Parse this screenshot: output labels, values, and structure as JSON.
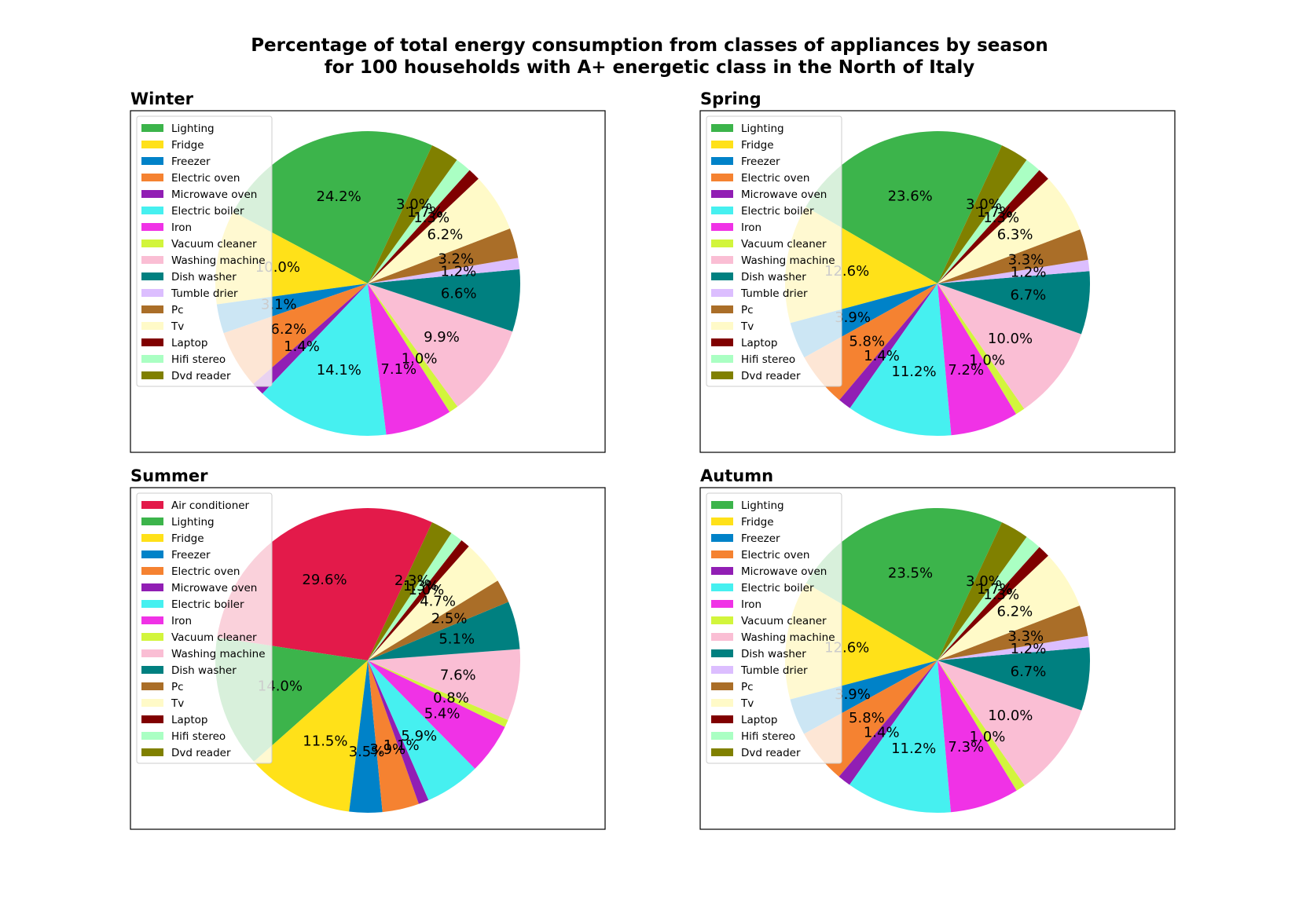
{
  "figure": {
    "title_line1": "Percentage of total energy consumption from classes of appliances by season",
    "title_line2": "for 100 households with A+ energetic class in the North of Italy"
  },
  "colors": {
    "Air conditioner": "#e31a4a",
    "Lighting": "#3cb44b",
    "Fridge": "#ffe119",
    "Freezer": "#0082c8",
    "Electric oven": "#f58231",
    "Microwave oven": "#911eb4",
    "Electric boiler": "#46f0f0",
    "Iron": "#f032e6",
    "Vacuum cleaner": "#d2f53c",
    "Washing machine": "#fabed4",
    "Dish washer": "#008080",
    "Tumble drier": "#dcbeff",
    "Pc": "#aa6e28",
    "Tv": "#fffac8",
    "Laptop": "#800000",
    "Hifi stereo": "#aaffc3",
    "Dvd reader": "#808000"
  },
  "chart_data": [
    {
      "type": "pie",
      "title": "Winter",
      "labels": [
        "Lighting",
        "Fridge",
        "Freezer",
        "Electric oven",
        "Microwave oven",
        "Electric boiler",
        "Iron",
        "Vacuum cleaner",
        "Washing machine",
        "Dish washer",
        "Tumble drier",
        "Pc",
        "Tv",
        "Laptop",
        "Hifi stereo",
        "Dvd reader"
      ],
      "values": [
        24.2,
        10.0,
        3.1,
        6.2,
        1.4,
        14.1,
        7.1,
        1.0,
        9.9,
        6.6,
        1.2,
        3.2,
        6.2,
        1.3,
        1.7,
        3.0
      ],
      "value_labels": [
        "24.2%",
        "10.0%",
        "3.1%",
        "6.2%",
        "1.4%",
        "14.1%",
        "7.1%",
        "1.0%",
        "9.9%",
        "6.6%",
        "1.2%",
        "3.2%",
        "6.2%",
        "1.3%",
        "1.7%",
        "3.0%"
      ],
      "legend_position": "upper left"
    },
    {
      "type": "pie",
      "title": "Spring",
      "labels": [
        "Lighting",
        "Fridge",
        "Freezer",
        "Electric oven",
        "Microwave oven",
        "Electric boiler",
        "Iron",
        "Vacuum cleaner",
        "Washing machine",
        "Dish washer",
        "Tumble drier",
        "Pc",
        "Tv",
        "Laptop",
        "Hifi stereo",
        "Dvd reader"
      ],
      "values": [
        23.6,
        12.6,
        3.9,
        5.8,
        1.4,
        11.2,
        7.2,
        1.0,
        10.0,
        6.7,
        1.2,
        3.3,
        6.3,
        1.3,
        1.7,
        3.0
      ],
      "value_labels": [
        "23.6%",
        "12.6%",
        "3.9%",
        "5.8%",
        "1.4%",
        "11.2%",
        "7.2%",
        "1.0%",
        "10.0%",
        "6.7%",
        "1.2%",
        "3.3%",
        "6.3%",
        "1.3%",
        "1.7%",
        "3.0%"
      ],
      "legend_position": "upper left"
    },
    {
      "type": "pie",
      "title": "Summer",
      "labels": [
        "Air conditioner",
        "Lighting",
        "Fridge",
        "Freezer",
        "Electric oven",
        "Microwave oven",
        "Electric boiler",
        "Iron",
        "Vacuum cleaner",
        "Washing machine",
        "Dish washer",
        "Pc",
        "Tv",
        "Laptop",
        "Hifi stereo",
        "Dvd reader"
      ],
      "values": [
        29.6,
        14.0,
        11.5,
        3.5,
        3.9,
        1.1,
        5.9,
        5.4,
        0.8,
        7.6,
        5.1,
        2.5,
        4.7,
        1.0,
        1.3,
        2.3
      ],
      "value_labels": [
        "29.6%",
        "14.0%",
        "11.5%",
        "3.5%",
        "3.9%",
        "1.1%",
        "5.9%",
        "5.4%",
        "0.8%",
        "7.6%",
        "5.1%",
        "2.5%",
        "4.7%",
        "1.0%",
        "1.3%",
        "2.3%"
      ],
      "legend_position": "upper left"
    },
    {
      "type": "pie",
      "title": "Autumn",
      "labels": [
        "Lighting",
        "Fridge",
        "Freezer",
        "Electric oven",
        "Microwave oven",
        "Electric boiler",
        "Iron",
        "Vacuum cleaner",
        "Washing machine",
        "Dish washer",
        "Tumble drier",
        "Pc",
        "Tv",
        "Laptop",
        "Hifi stereo",
        "Dvd reader"
      ],
      "values": [
        23.5,
        12.6,
        3.9,
        5.8,
        1.4,
        11.2,
        7.3,
        1.0,
        10.0,
        6.7,
        1.2,
        3.3,
        6.2,
        1.3,
        1.7,
        3.0
      ],
      "value_labels": [
        "23.5%",
        "12.6%",
        "3.9%",
        "5.8%",
        "1.4%",
        "11.2%",
        "7.3%",
        "1.0%",
        "10.0%",
        "6.7%",
        "1.2%",
        "3.3%",
        "6.2%",
        "1.3%",
        "1.7%",
        "3.0%"
      ],
      "legend_position": "upper left"
    }
  ]
}
